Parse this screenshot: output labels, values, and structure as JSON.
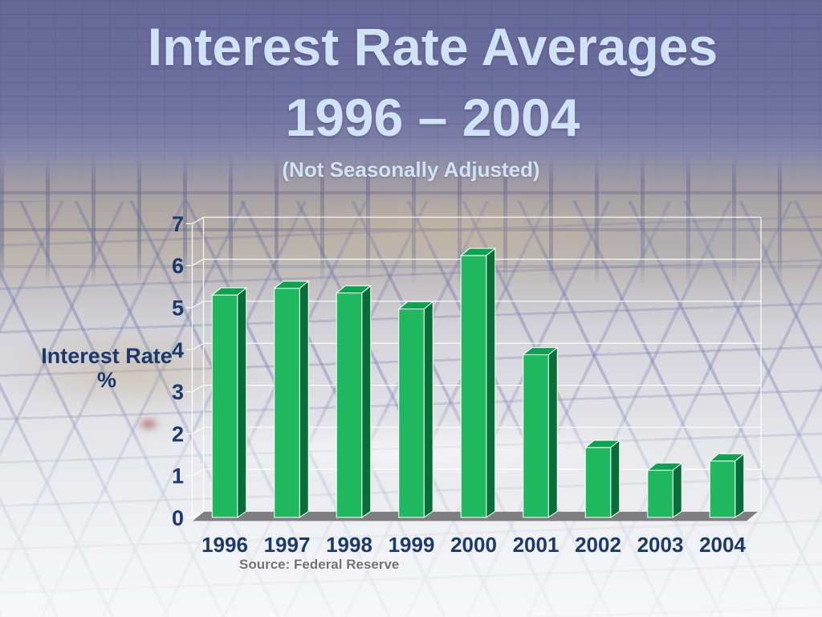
{
  "slide": {
    "title_line1": "Interest Rate Averages",
    "title_line2": "1996 – 2004",
    "subtitle": "(Not Seasonally Adjusted)",
    "y_axis_label_line1": "Interest Rate",
    "y_axis_label_line2": "%",
    "source": "Source: Federal Reserve"
  },
  "chart_data": {
    "type": "bar",
    "title": "Interest Rate Averages 1996 – 2004",
    "subtitle": "(Not Seasonally Adjusted)",
    "categories": [
      "1996",
      "1997",
      "1998",
      "1999",
      "2000",
      "2001",
      "2002",
      "2003",
      "2004"
    ],
    "values": [
      5.3,
      5.46,
      5.35,
      4.97,
      6.24,
      3.88,
      1.67,
      1.13,
      1.35
    ],
    "xlabel": "",
    "ylabel": "Interest Rate %",
    "ylim": [
      0,
      7
    ],
    "yticks": [
      0,
      1,
      2,
      3,
      4,
      5,
      6,
      7
    ],
    "grid": true,
    "legend": "none",
    "bar_style": "3d-column",
    "source": "Source: Federal Reserve",
    "colors": {
      "bar_front": "#1eb95f",
      "bar_top": "#0ca24e",
      "bar_side": "#086e37",
      "floor": "#7f7f82",
      "gridline": "rgba(255,255,255,0.88)",
      "tick_label": "#1a3a6e",
      "title_text": "#cfe3f5"
    }
  }
}
